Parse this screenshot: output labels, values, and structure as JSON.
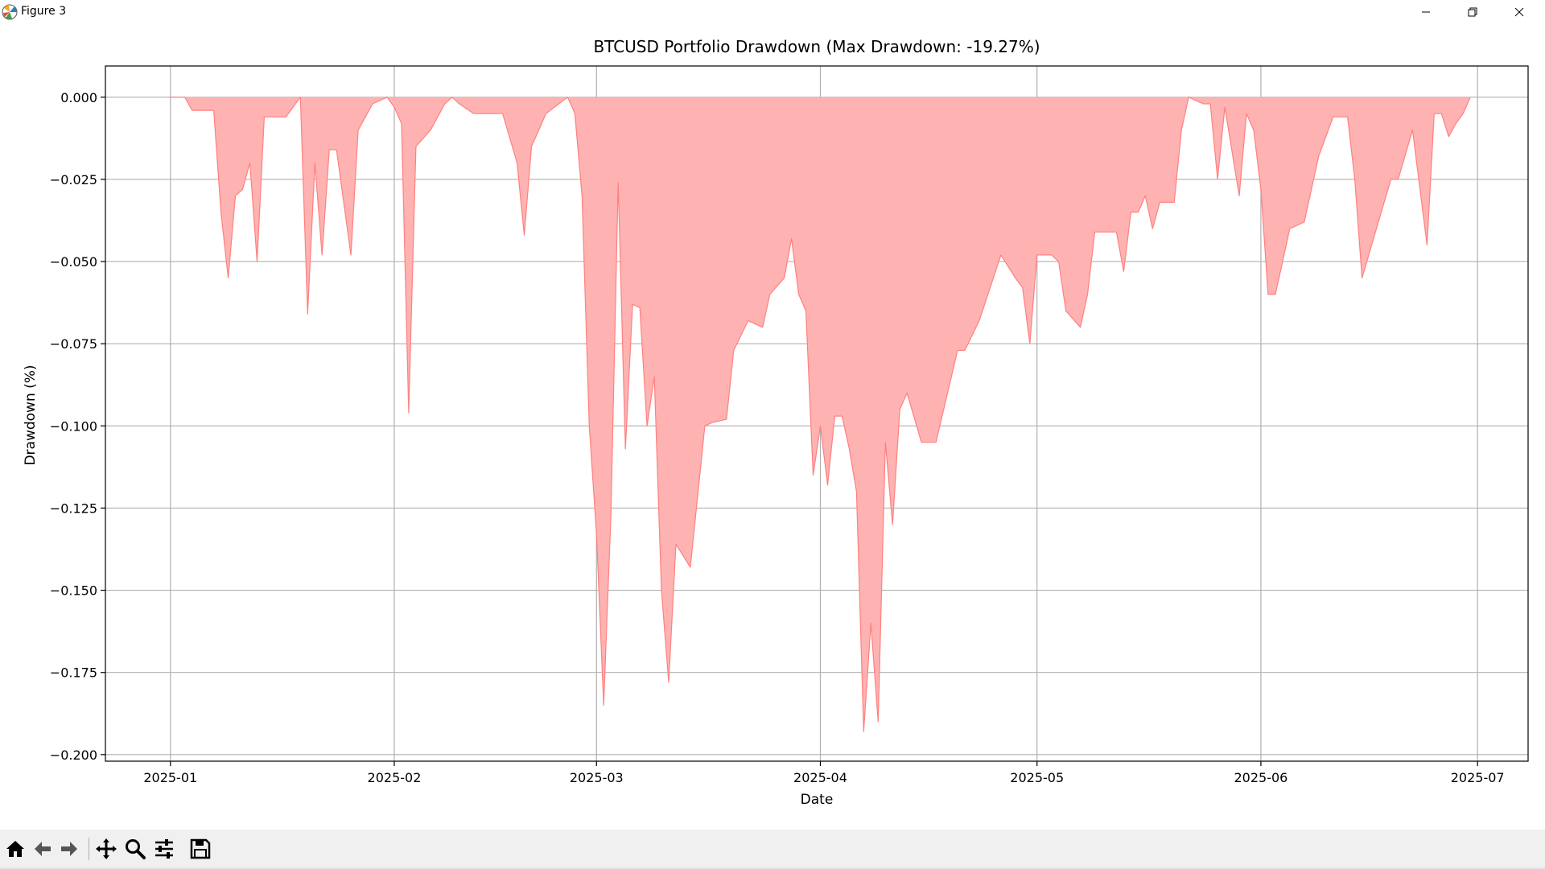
{
  "window": {
    "title": "Figure 3",
    "app_icon": "matplotlib-logo-icon",
    "controls": [
      "minimize-icon",
      "restore-icon",
      "close-icon"
    ]
  },
  "toolbar": {
    "buttons": [
      "home-icon",
      "back-icon",
      "forward-icon",
      "pan-icon",
      "zoom-icon",
      "configure-subplots-icon",
      "save-icon"
    ]
  },
  "colors": {
    "fill": "#ffb2b2",
    "line": "#ff8080",
    "grid": "#b0b0b0",
    "axes": "#000000"
  },
  "chart_data": {
    "type": "area",
    "title": "BTCUSD Portfolio Drawdown (Max Drawdown: -19.27%)",
    "xlabel": "Date",
    "ylabel": "Drawdown (%)",
    "xlim": [
      "2024-12-23",
      "2025-07-08"
    ],
    "ylim": [
      -0.202,
      0.0095
    ],
    "xticks": [
      "2025-01-01",
      "2025-02-01",
      "2025-03-01",
      "2025-04-01",
      "2025-05-01",
      "2025-06-01",
      "2025-07-01"
    ],
    "xtick_labels": [
      "2025-01",
      "2025-02",
      "2025-03",
      "2025-04",
      "2025-05",
      "2025-06",
      "2025-07"
    ],
    "yticks": [
      0.0,
      -0.025,
      -0.05,
      -0.075,
      -0.1,
      -0.125,
      -0.15,
      -0.175,
      -0.2
    ],
    "ytick_labels": [
      "0.000",
      "−0.025",
      "−0.050",
      "−0.075",
      "−0.100",
      "−0.125",
      "−0.150",
      "−0.175",
      "−0.200"
    ],
    "grid": true,
    "series": [
      {
        "x": [
          "2025-01-01",
          "2025-01-03",
          "2025-01-04",
          "2025-01-07",
          "2025-01-08",
          "2025-01-09",
          "2025-01-10",
          "2025-01-11",
          "2025-01-12",
          "2025-01-13",
          "2025-01-14",
          "2025-01-15",
          "2025-01-17",
          "2025-01-19",
          "2025-01-20",
          "2025-01-21",
          "2025-01-22",
          "2025-01-23",
          "2025-01-24",
          "2025-01-26",
          "2025-01-27",
          "2025-01-28",
          "2025-01-29",
          "2025-01-31",
          "2025-02-01",
          "2025-02-02",
          "2025-02-03",
          "2025-02-04",
          "2025-02-06",
          "2025-02-08",
          "2025-02-09",
          "2025-02-10",
          "2025-02-12",
          "2025-02-14",
          "2025-02-16",
          "2025-02-18",
          "2025-02-19",
          "2025-02-20",
          "2025-02-21",
          "2025-02-22",
          "2025-02-25",
          "2025-02-26",
          "2025-02-27",
          "2025-02-28",
          "2025-03-01",
          "2025-03-02",
          "2025-03-03",
          "2025-03-04",
          "2025-03-05",
          "2025-03-06",
          "2025-03-07",
          "2025-03-08",
          "2025-03-09",
          "2025-03-10",
          "2025-03-11",
          "2025-03-12",
          "2025-03-14",
          "2025-03-16",
          "2025-03-17",
          "2025-03-19",
          "2025-03-20",
          "2025-03-22",
          "2025-03-24",
          "2025-03-25",
          "2025-03-27",
          "2025-03-28",
          "2025-03-29",
          "2025-03-30",
          "2025-03-31",
          "2025-04-01",
          "2025-04-02",
          "2025-04-03",
          "2025-04-04",
          "2025-04-05",
          "2025-04-06",
          "2025-04-07",
          "2025-04-08",
          "2025-04-09",
          "2025-04-10",
          "2025-04-11",
          "2025-04-12",
          "2025-04-13",
          "2025-04-15",
          "2025-04-16",
          "2025-04-17",
          "2025-04-20",
          "2025-04-21",
          "2025-04-23",
          "2025-04-26",
          "2025-04-28",
          "2025-04-29",
          "2025-04-30",
          "2025-05-01",
          "2025-05-03",
          "2025-05-04",
          "2025-05-05",
          "2025-05-07",
          "2025-05-08",
          "2025-05-09",
          "2025-05-11",
          "2025-05-12",
          "2025-05-13",
          "2025-05-14",
          "2025-05-15",
          "2025-05-16",
          "2025-05-17",
          "2025-05-18",
          "2025-05-20",
          "2025-05-21",
          "2025-05-22",
          "2025-05-24",
          "2025-05-25",
          "2025-05-26",
          "2025-05-27",
          "2025-05-29",
          "2025-05-30",
          "2025-05-31",
          "2025-06-01",
          "2025-06-02",
          "2025-06-03",
          "2025-06-04",
          "2025-06-05",
          "2025-06-07",
          "2025-06-09",
          "2025-06-11",
          "2025-06-12",
          "2025-06-13",
          "2025-06-14",
          "2025-06-15",
          "2025-06-17",
          "2025-06-19",
          "2025-06-20",
          "2025-06-22",
          "2025-06-24",
          "2025-06-25",
          "2025-06-26",
          "2025-06-27",
          "2025-06-28",
          "2025-06-29",
          "2025-06-30"
        ],
        "y": [
          0,
          0,
          -0.004,
          -0.004,
          -0.035,
          -0.055,
          -0.03,
          -0.028,
          -0.02,
          -0.05,
          -0.006,
          -0.006,
          -0.006,
          0,
          -0.066,
          -0.02,
          -0.048,
          -0.016,
          -0.016,
          -0.048,
          -0.01,
          -0.006,
          -0.002,
          0,
          -0.003,
          -0.008,
          -0.096,
          -0.015,
          -0.01,
          -0.002,
          0,
          -0.002,
          -0.005,
          -0.005,
          -0.005,
          -0.02,
          -0.042,
          -0.015,
          -0.01,
          -0.005,
          0,
          -0.005,
          -0.03,
          -0.1,
          -0.133,
          -0.185,
          -0.127,
          -0.026,
          -0.107,
          -0.063,
          -0.064,
          -0.1,
          -0.085,
          -0.15,
          -0.178,
          -0.136,
          -0.143,
          -0.1,
          -0.099,
          -0.098,
          -0.077,
          -0.068,
          -0.07,
          -0.06,
          -0.055,
          -0.043,
          -0.06,
          -0.065,
          -0.115,
          -0.1,
          -0.118,
          -0.097,
          -0.097,
          -0.107,
          -0.12,
          -0.193,
          -0.16,
          -0.19,
          -0.105,
          -0.13,
          -0.095,
          -0.09,
          -0.105,
          -0.105,
          -0.105,
          -0.077,
          -0.077,
          -0.068,
          -0.048,
          -0.055,
          -0.058,
          -0.075,
          -0.048,
          -0.048,
          -0.05,
          -0.065,
          -0.07,
          -0.06,
          -0.041,
          -0.041,
          -0.041,
          -0.053,
          -0.035,
          -0.035,
          -0.03,
          -0.04,
          -0.032,
          -0.032,
          -0.01,
          0,
          -0.002,
          -0.002,
          -0.025,
          -0.003,
          -0.03,
          -0.005,
          -0.01,
          -0.028,
          -0.06,
          -0.06,
          -0.05,
          -0.04,
          -0.038,
          -0.018,
          -0.006,
          -0.006,
          -0.006,
          -0.025,
          -0.055,
          -0.04,
          -0.025,
          -0.025,
          -0.01,
          -0.045,
          -0.005,
          -0.005,
          -0.012,
          -0.008,
          -0.005,
          0
        ]
      }
    ]
  }
}
